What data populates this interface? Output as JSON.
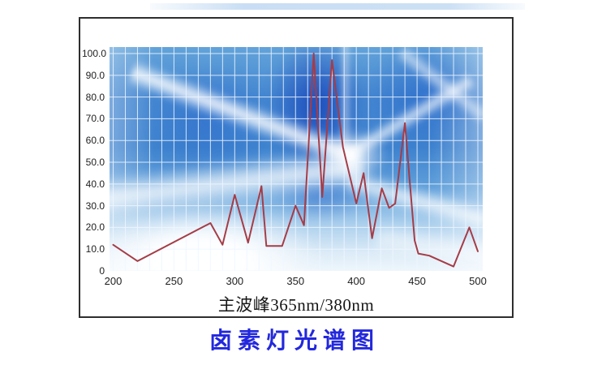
{
  "page": {
    "background": "#ffffff"
  },
  "chart_data": {
    "type": "line",
    "title": "卤素灯光谱图",
    "caption": "主波峰365nm/380nm",
    "x_axis": {
      "range": [
        197,
        504
      ],
      "ticks": [
        200,
        250,
        300,
        350,
        400,
        450,
        500
      ]
    },
    "y_axis": {
      "range": [
        0,
        103
      ],
      "ticks": [
        {
          "value": 100,
          "label": "100.0"
        },
        {
          "value": 90,
          "label": "90.0"
        },
        {
          "value": 80,
          "label": "80.0"
        },
        {
          "value": 70,
          "label": "70.0"
        },
        {
          "value": 60,
          "label": "60.0"
        },
        {
          "value": 50,
          "label": "50.0"
        },
        {
          "value": 40,
          "label": "40.0"
        },
        {
          "value": 30,
          "label": "30.0"
        },
        {
          "value": 20,
          "label": "20.0"
        },
        {
          "value": 10,
          "label": "10.0"
        },
        {
          "value": 0,
          "label": "0"
        }
      ]
    },
    "grid": {
      "on": true,
      "x_step": 10,
      "y_step": 10,
      "color": "rgba(238,247,255,0.85)"
    },
    "legend": "none",
    "series": [
      {
        "name": "halogen lamp spectrum",
        "color": "#a53c47",
        "points": [
          [
            200,
            12
          ],
          [
            220,
            4.5
          ],
          [
            280,
            22
          ],
          [
            290,
            12
          ],
          [
            300,
            35
          ],
          [
            311,
            13
          ],
          [
            322,
            39
          ],
          [
            326,
            11.5
          ],
          [
            339,
            11.5
          ],
          [
            350,
            30
          ],
          [
            357,
            21
          ],
          [
            365,
            100
          ],
          [
            372,
            34
          ],
          [
            380,
            97
          ],
          [
            389,
            57
          ],
          [
            400,
            31
          ],
          [
            406,
            45
          ],
          [
            413,
            15
          ],
          [
            421,
            38
          ],
          [
            427,
            29
          ],
          [
            432,
            31
          ],
          [
            440,
            68
          ],
          [
            448,
            14
          ],
          [
            451,
            8
          ],
          [
            460,
            7
          ],
          [
            480,
            2
          ],
          [
            493,
            20
          ],
          [
            500,
            9
          ]
        ]
      }
    ]
  },
  "colors": {
    "title": "#2328dd",
    "caption": "#161616",
    "axis_labels": "#1e1e1e",
    "frame_border": "#2e2e2e",
    "line": "#a53c47"
  }
}
